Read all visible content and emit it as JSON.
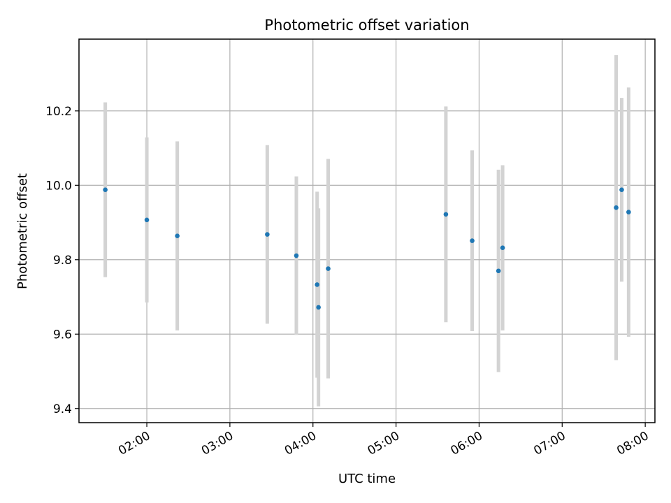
{
  "chart_data": {
    "type": "scatter",
    "title": "Photometric offset variation",
    "xlabel": "UTC time",
    "ylabel": "Photometric offset",
    "x_tick_labels": [
      "02:00",
      "03:00",
      "04:00",
      "05:00",
      "06:00",
      "07:00",
      "08:00"
    ],
    "y_tick_labels": [
      "9.4",
      "9.6",
      "9.8",
      "10.0",
      "10.2"
    ],
    "y_ticks": [
      9.4,
      9.6,
      9.8,
      10.0,
      10.2
    ],
    "xlim": [
      "01:11",
      "08:07"
    ],
    "ylim": [
      9.362,
      10.393
    ],
    "grid": true,
    "marker_color": "#1f77b4",
    "errorbar_color": "#d3d3d3",
    "points": [
      {
        "t": "01:30",
        "y": 9.988,
        "yerr": 0.235
      },
      {
        "t": "02:00",
        "y": 9.907,
        "yerr": 0.222
      },
      {
        "t": "02:22",
        "y": 9.864,
        "yerr": 0.254
      },
      {
        "t": "03:27",
        "y": 9.868,
        "yerr": 0.24
      },
      {
        "t": "03:48",
        "y": 9.811,
        "yerr": 0.213
      },
      {
        "t": "04:03",
        "y": 9.733,
        "yerr": 0.25
      },
      {
        "t": "04:04",
        "y": 9.672,
        "yerr": 0.266
      },
      {
        "t": "04:11",
        "y": 9.776,
        "yerr": 0.295
      },
      {
        "t": "05:36",
        "y": 9.922,
        "yerr": 0.29
      },
      {
        "t": "05:55",
        "y": 9.851,
        "yerr": 0.243
      },
      {
        "t": "06:14",
        "y": 9.77,
        "yerr": 0.272
      },
      {
        "t": "06:17",
        "y": 9.832,
        "yerr": 0.222
      },
      {
        "t": "07:39",
        "y": 9.94,
        "yerr": 0.41
      },
      {
        "t": "07:43",
        "y": 9.988,
        "yerr": 0.247
      },
      {
        "t": "07:48",
        "y": 9.928,
        "yerr": 0.335
      }
    ]
  }
}
